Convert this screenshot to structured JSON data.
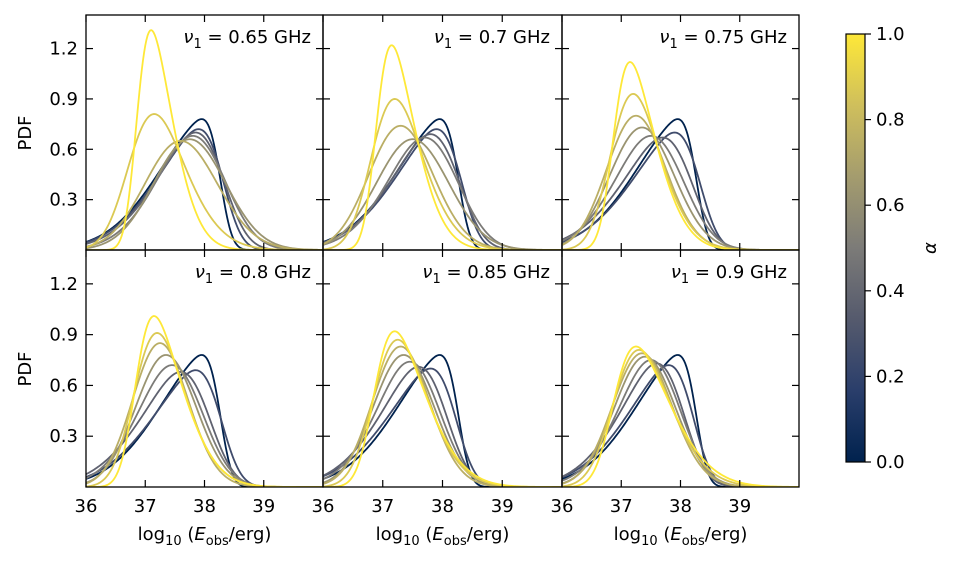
{
  "chart_data": {
    "type": "line",
    "layout": "2x3 grid of panels",
    "curve_form": "skew-normal PDF",
    "alpha_values": [
      0.0,
      0.25,
      0.375,
      0.5,
      0.625,
      0.75,
      0.875,
      1.0
    ],
    "panels": [
      {
        "title_prefix": "ν",
        "title_sub": "1",
        "title_value": " = 0.65 GHz",
        "series": [
          {
            "alpha": 0.0,
            "peak_x": 37.95,
            "peak_y": 0.78
          },
          {
            "alpha": 0.25,
            "peak_x": 37.9,
            "peak_y": 0.72
          },
          {
            "alpha": 0.375,
            "peak_x": 37.85,
            "peak_y": 0.7
          },
          {
            "alpha": 0.5,
            "peak_x": 37.8,
            "peak_y": 0.68
          },
          {
            "alpha": 0.625,
            "peak_x": 37.75,
            "peak_y": 0.66
          },
          {
            "alpha": 0.75,
            "peak_x": 37.6,
            "peak_y": 0.65
          },
          {
            "alpha": 0.875,
            "peak_x": 37.15,
            "peak_y": 0.81
          },
          {
            "alpha": 1.0,
            "peak_x": 37.1,
            "peak_y": 1.31
          }
        ]
      },
      {
        "title_prefix": "ν",
        "title_sub": "1",
        "title_value": " = 0.7 GHz",
        "series": [
          {
            "alpha": 0.0,
            "peak_x": 37.95,
            "peak_y": 0.78
          },
          {
            "alpha": 0.25,
            "peak_x": 37.9,
            "peak_y": 0.72
          },
          {
            "alpha": 0.375,
            "peak_x": 37.8,
            "peak_y": 0.69
          },
          {
            "alpha": 0.5,
            "peak_x": 37.7,
            "peak_y": 0.67
          },
          {
            "alpha": 0.625,
            "peak_x": 37.5,
            "peak_y": 0.66
          },
          {
            "alpha": 0.75,
            "peak_x": 37.3,
            "peak_y": 0.74
          },
          {
            "alpha": 0.875,
            "peak_x": 37.2,
            "peak_y": 0.9
          },
          {
            "alpha": 1.0,
            "peak_x": 37.15,
            "peak_y": 1.22
          }
        ]
      },
      {
        "title_prefix": "ν",
        "title_sub": "1",
        "title_value": " = 0.75 GHz",
        "series": [
          {
            "alpha": 0.0,
            "peak_x": 37.95,
            "peak_y": 0.78
          },
          {
            "alpha": 0.25,
            "peak_x": 37.9,
            "peak_y": 0.7
          },
          {
            "alpha": 0.375,
            "peak_x": 37.7,
            "peak_y": 0.67
          },
          {
            "alpha": 0.5,
            "peak_x": 37.5,
            "peak_y": 0.68
          },
          {
            "alpha": 0.625,
            "peak_x": 37.35,
            "peak_y": 0.73
          },
          {
            "alpha": 0.75,
            "peak_x": 37.25,
            "peak_y": 0.8
          },
          {
            "alpha": 0.875,
            "peak_x": 37.2,
            "peak_y": 0.93
          },
          {
            "alpha": 1.0,
            "peak_x": 37.15,
            "peak_y": 1.12
          }
        ]
      },
      {
        "title_prefix": "ν",
        "title_sub": "1",
        "title_value": " = 0.8 GHz",
        "series": [
          {
            "alpha": 0.0,
            "peak_x": 37.95,
            "peak_y": 0.78
          },
          {
            "alpha": 0.25,
            "peak_x": 37.85,
            "peak_y": 0.69
          },
          {
            "alpha": 0.375,
            "peak_x": 37.6,
            "peak_y": 0.68
          },
          {
            "alpha": 0.5,
            "peak_x": 37.45,
            "peak_y": 0.72
          },
          {
            "alpha": 0.625,
            "peak_x": 37.35,
            "peak_y": 0.78
          },
          {
            "alpha": 0.75,
            "peak_x": 37.25,
            "peak_y": 0.85
          },
          {
            "alpha": 0.875,
            "peak_x": 37.2,
            "peak_y": 0.91
          },
          {
            "alpha": 1.0,
            "peak_x": 37.15,
            "peak_y": 1.01
          }
        ]
      },
      {
        "title_prefix": "ν",
        "title_sub": "1",
        "title_value": " = 0.85 GHz",
        "series": [
          {
            "alpha": 0.0,
            "peak_x": 37.95,
            "peak_y": 0.78
          },
          {
            "alpha": 0.25,
            "peak_x": 37.8,
            "peak_y": 0.7
          },
          {
            "alpha": 0.375,
            "peak_x": 37.6,
            "peak_y": 0.71
          },
          {
            "alpha": 0.5,
            "peak_x": 37.45,
            "peak_y": 0.74
          },
          {
            "alpha": 0.625,
            "peak_x": 37.35,
            "peak_y": 0.78
          },
          {
            "alpha": 0.75,
            "peak_x": 37.3,
            "peak_y": 0.83
          },
          {
            "alpha": 0.875,
            "peak_x": 37.25,
            "peak_y": 0.87
          },
          {
            "alpha": 1.0,
            "peak_x": 37.2,
            "peak_y": 0.92
          }
        ]
      },
      {
        "title_prefix": "ν",
        "title_sub": "1",
        "title_value": " = 0.9 GHz",
        "series": [
          {
            "alpha": 0.0,
            "peak_x": 37.95,
            "peak_y": 0.78
          },
          {
            "alpha": 0.25,
            "peak_x": 37.8,
            "peak_y": 0.72
          },
          {
            "alpha": 0.375,
            "peak_x": 37.6,
            "peak_y": 0.73
          },
          {
            "alpha": 0.5,
            "peak_x": 37.5,
            "peak_y": 0.75
          },
          {
            "alpha": 0.625,
            "peak_x": 37.4,
            "peak_y": 0.77
          },
          {
            "alpha": 0.75,
            "peak_x": 37.35,
            "peak_y": 0.79
          },
          {
            "alpha": 0.875,
            "peak_x": 37.3,
            "peak_y": 0.81
          },
          {
            "alpha": 1.0,
            "peak_x": 37.25,
            "peak_y": 0.83
          }
        ]
      }
    ],
    "xlim": [
      36,
      40
    ],
    "ylim": [
      0,
      1.4
    ],
    "xticks": [
      36,
      37,
      38,
      39
    ],
    "yticks": [
      0.3,
      0.6,
      0.9,
      1.2
    ],
    "xtick_labels": [
      "36",
      "37",
      "38",
      "39"
    ],
    "ytick_labels": [
      "0.3",
      "0.6",
      "0.9",
      "1.2"
    ],
    "xlabel": {
      "prefix": "log",
      "sub": "10",
      "open": " (",
      "var": "E",
      "var_sub": "obs",
      "suffix": "/erg)"
    },
    "ylabel": "PDF",
    "colorbar": {
      "label": "α",
      "range": [
        0.0,
        1.0
      ],
      "ticks": [
        0.0,
        0.2,
        0.4,
        0.6,
        0.8,
        1.0
      ],
      "tick_labels": [
        "0.0",
        "0.2",
        "0.4",
        "0.6",
        "0.8",
        "1.0"
      ],
      "colormap": "cividis",
      "color_stops": [
        "#00224e",
        "#2a3e6b",
        "#555a6d",
        "#7c7b78",
        "#a49c6e",
        "#cfbf5c",
        "#fee838"
      ]
    }
  }
}
